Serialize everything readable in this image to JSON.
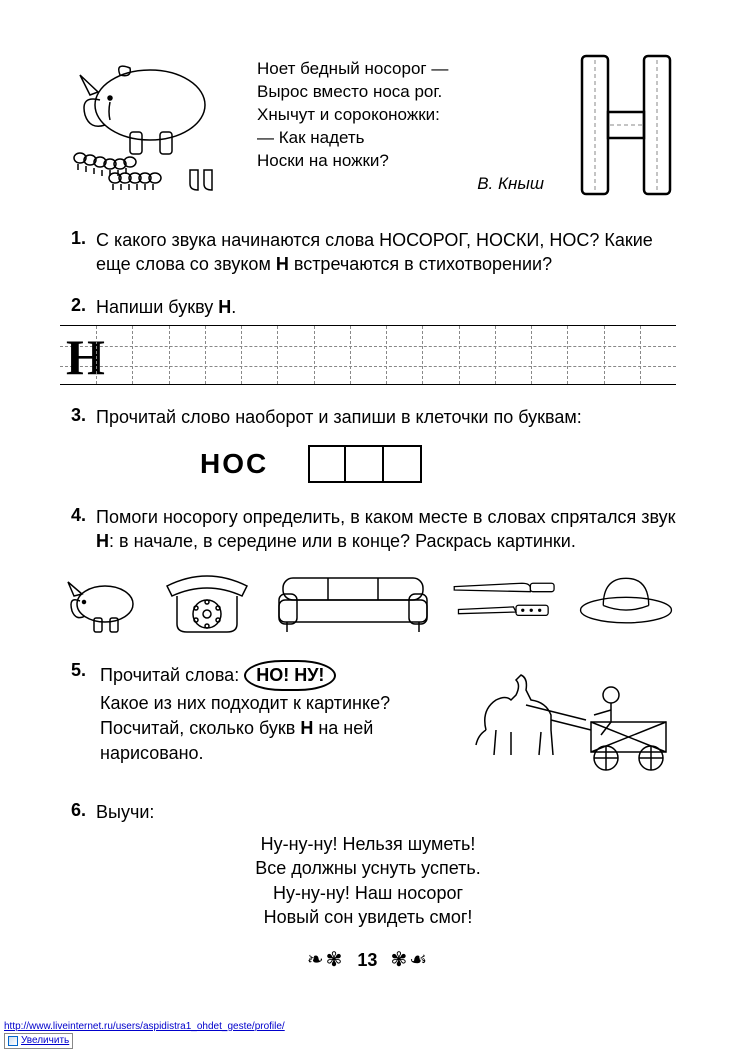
{
  "poem": {
    "l1": "Ноет бедный носорог —",
    "l2": "Вырос вместо носа рог.",
    "l3": "Хнычут и сороконожки:",
    "l4": "— Как надеть",
    "l5": "Носки на ножки?",
    "author": "В. Кныш"
  },
  "tasks": {
    "t1": {
      "num": "1.",
      "text_a": "С какого звука начинаются слова НОСОРОГ, НОСКИ, НОС? Какие еще слова со звуком ",
      "text_b": "Н",
      "text_c": " встречаются в стихотворении?"
    },
    "t2": {
      "num": "2.",
      "text_a": "Напиши букву ",
      "text_b": "Н",
      "text_c": "."
    },
    "t3": {
      "num": "3.",
      "text": "Прочитай слово наоборот и запиши в клеточки по буквам:"
    },
    "nos_word": "НОС",
    "t4": {
      "num": "4.",
      "text_a": "Помоги носорогу определить, в каком месте в словах спрятался звук ",
      "text_b": "Н",
      "text_c": ": в начале, в середине или в конце? Раскрась картинки."
    },
    "t5": {
      "num": "5.",
      "text_a": "Прочитай слова: ",
      "oval": "НО! НУ!",
      "text_b": "Какое из них подходит к картинке? Посчитай, сколько букв ",
      "text_c": "Н",
      "text_d": " на ней нарисовано."
    },
    "t6": {
      "num": "6.",
      "text": "Выучи:"
    }
  },
  "rhyme": {
    "l1": "Ну-ну-ну! Нельзя шуметь!",
    "l2": "Все должны уснуть успеть.",
    "l3": "Ну-ну-ну! Наш носорог",
    "l4": "Новый сон увидеть смог!"
  },
  "page_number": "13",
  "footer_url": "http://www.liveinternet.ru/users/aspidistra1_ohdet_geste/profile/",
  "enlarge_label": "Увеличить",
  "colors": {
    "text": "#000000",
    "bg": "#ffffff",
    "dash": "#888888",
    "link": "#0000cc"
  },
  "icons": {
    "rhino": "rhino-crying-with-centipedes",
    "letter": "outlined-letter-H-cyrillic-N",
    "example_letter": "Н",
    "pics": [
      "small-rhino",
      "rotary-telephone",
      "sofa",
      "knife-and-scissors",
      "hat"
    ],
    "horse": "horse-pulling-cart-with-driver"
  },
  "layout": {
    "writing_cells": 17,
    "three_boxes": 3
  }
}
